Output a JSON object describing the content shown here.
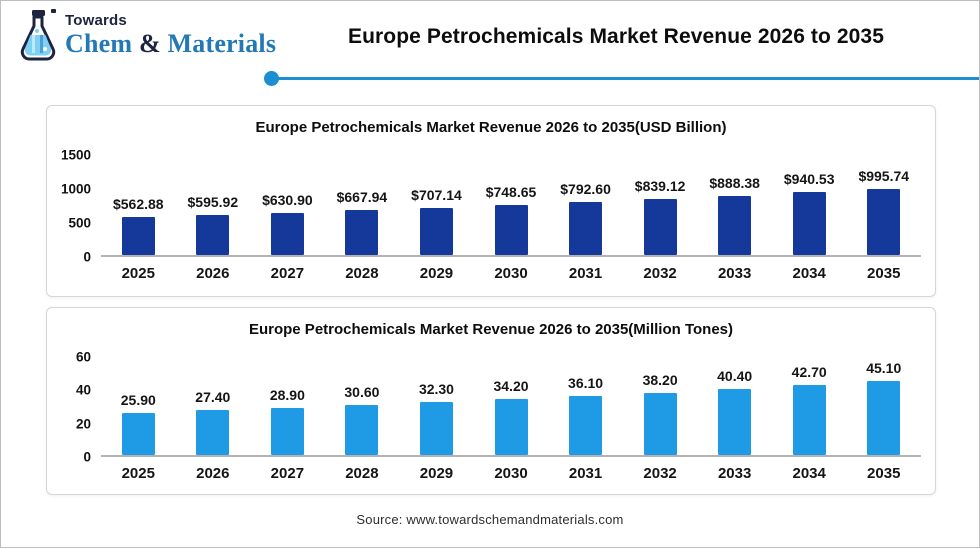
{
  "header": {
    "logo": {
      "towards": "Towards",
      "chem": "Chem",
      "ampersand": "&",
      "materials": "Materials"
    },
    "title": "Europe Petrochemicals Market Revenue 2026 to 2035"
  },
  "footer": {
    "source": "Source: www.towardschemandmaterials.com"
  },
  "colors": {
    "accent_blue": "#1b8fd1",
    "bar_navy": "#15389b",
    "bar_azure": "#1e9be4",
    "logo_navy": "#1c2440",
    "logo_teal": "#2279b5"
  },
  "chart_data": [
    {
      "type": "bar",
      "title": "Europe Petrochemicals Market Revenue 2026 to 2035(USD Billion)",
      "categories": [
        "2025",
        "2026",
        "2027",
        "2028",
        "2029",
        "2030",
        "2031",
        "2032",
        "2033",
        "2034",
        "2035"
      ],
      "values": [
        562.88,
        595.92,
        630.9,
        667.94,
        707.14,
        748.65,
        792.6,
        839.12,
        888.38,
        940.53,
        995.74
      ],
      "labels": [
        "$562.88",
        "$595.92",
        "$630.90",
        "$667.94",
        "$707.14",
        "$748.65",
        "$792.60",
        "$839.12",
        "$888.38",
        "$940.53",
        "$995.74"
      ],
      "xlabel": "",
      "ylabel": "",
      "ylim": [
        0,
        1500
      ],
      "yticks": [
        0,
        500,
        1000,
        1500
      ],
      "grid": false,
      "legend": "none",
      "bar_color": "#15389b"
    },
    {
      "type": "bar",
      "title": "Europe Petrochemicals Market Revenue 2026 to 2035(Million Tones)",
      "categories": [
        "2025",
        "2026",
        "2027",
        "2028",
        "2029",
        "2030",
        "2031",
        "2032",
        "2033",
        "2034",
        "2035"
      ],
      "values": [
        25.9,
        27.4,
        28.9,
        30.6,
        32.3,
        34.2,
        36.1,
        38.2,
        40.4,
        42.7,
        45.1
      ],
      "labels": [
        "25.90",
        "27.40",
        "28.90",
        "30.60",
        "32.30",
        "34.20",
        "36.10",
        "38.20",
        "40.40",
        "42.70",
        "45.10"
      ],
      "xlabel": "",
      "ylabel": "",
      "ylim": [
        0,
        60
      ],
      "yticks": [
        0,
        20,
        40,
        60
      ],
      "grid": false,
      "legend": "none",
      "bar_color": "#1e9be4"
    }
  ]
}
